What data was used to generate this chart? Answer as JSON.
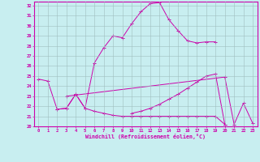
{
  "background_color": "#c8eef0",
  "grid_color": "#9fbfbf",
  "line_color": "#cc00aa",
  "spine_color": "#cc00aa",
  "xlim": [
    -0.5,
    23.5
  ],
  "ylim": [
    20,
    32.4
  ],
  "xticks": [
    0,
    1,
    2,
    3,
    4,
    5,
    6,
    7,
    8,
    9,
    10,
    11,
    12,
    13,
    14,
    15,
    16,
    17,
    18,
    19,
    20,
    21,
    22,
    23
  ],
  "yticks": [
    20,
    21,
    22,
    23,
    24,
    25,
    26,
    27,
    28,
    29,
    30,
    31,
    32
  ],
  "xlabel": "Windchill (Refroidissement éolien,°C)",
  "series": [
    {
      "x": [
        0,
        1,
        2,
        3,
        4,
        5,
        6,
        7,
        8,
        9,
        10,
        11,
        12,
        13,
        14,
        15,
        16,
        17,
        18,
        19
      ],
      "y": [
        24.7,
        24.5,
        21.7,
        21.8,
        23.2,
        21.8,
        26.3,
        27.8,
        29.0,
        28.8,
        30.2,
        31.4,
        32.2,
        32.3,
        30.6,
        29.5,
        28.5,
        28.3,
        28.4,
        28.4
      ]
    },
    {
      "x": [
        3,
        20,
        21,
        22,
        23
      ],
      "y": [
        23.0,
        24.9,
        20.2,
        22.3,
        20.3
      ]
    },
    {
      "x": [
        10,
        11,
        12,
        13,
        14,
        15,
        16,
        17,
        18,
        19,
        20
      ],
      "y": [
        21.3,
        21.5,
        21.8,
        22.2,
        22.7,
        23.2,
        23.8,
        24.4,
        25.0,
        25.2,
        20.2
      ]
    },
    {
      "x": [
        2,
        3,
        4,
        5,
        6,
        7,
        8,
        9,
        10,
        11,
        12,
        13,
        14,
        15,
        16,
        17,
        18,
        19,
        20
      ],
      "y": [
        21.7,
        21.8,
        23.2,
        21.8,
        21.5,
        21.3,
        21.1,
        21.0,
        21.0,
        21.0,
        21.0,
        21.0,
        21.0,
        21.0,
        21.0,
        21.0,
        21.0,
        21.0,
        20.2
      ]
    }
  ]
}
